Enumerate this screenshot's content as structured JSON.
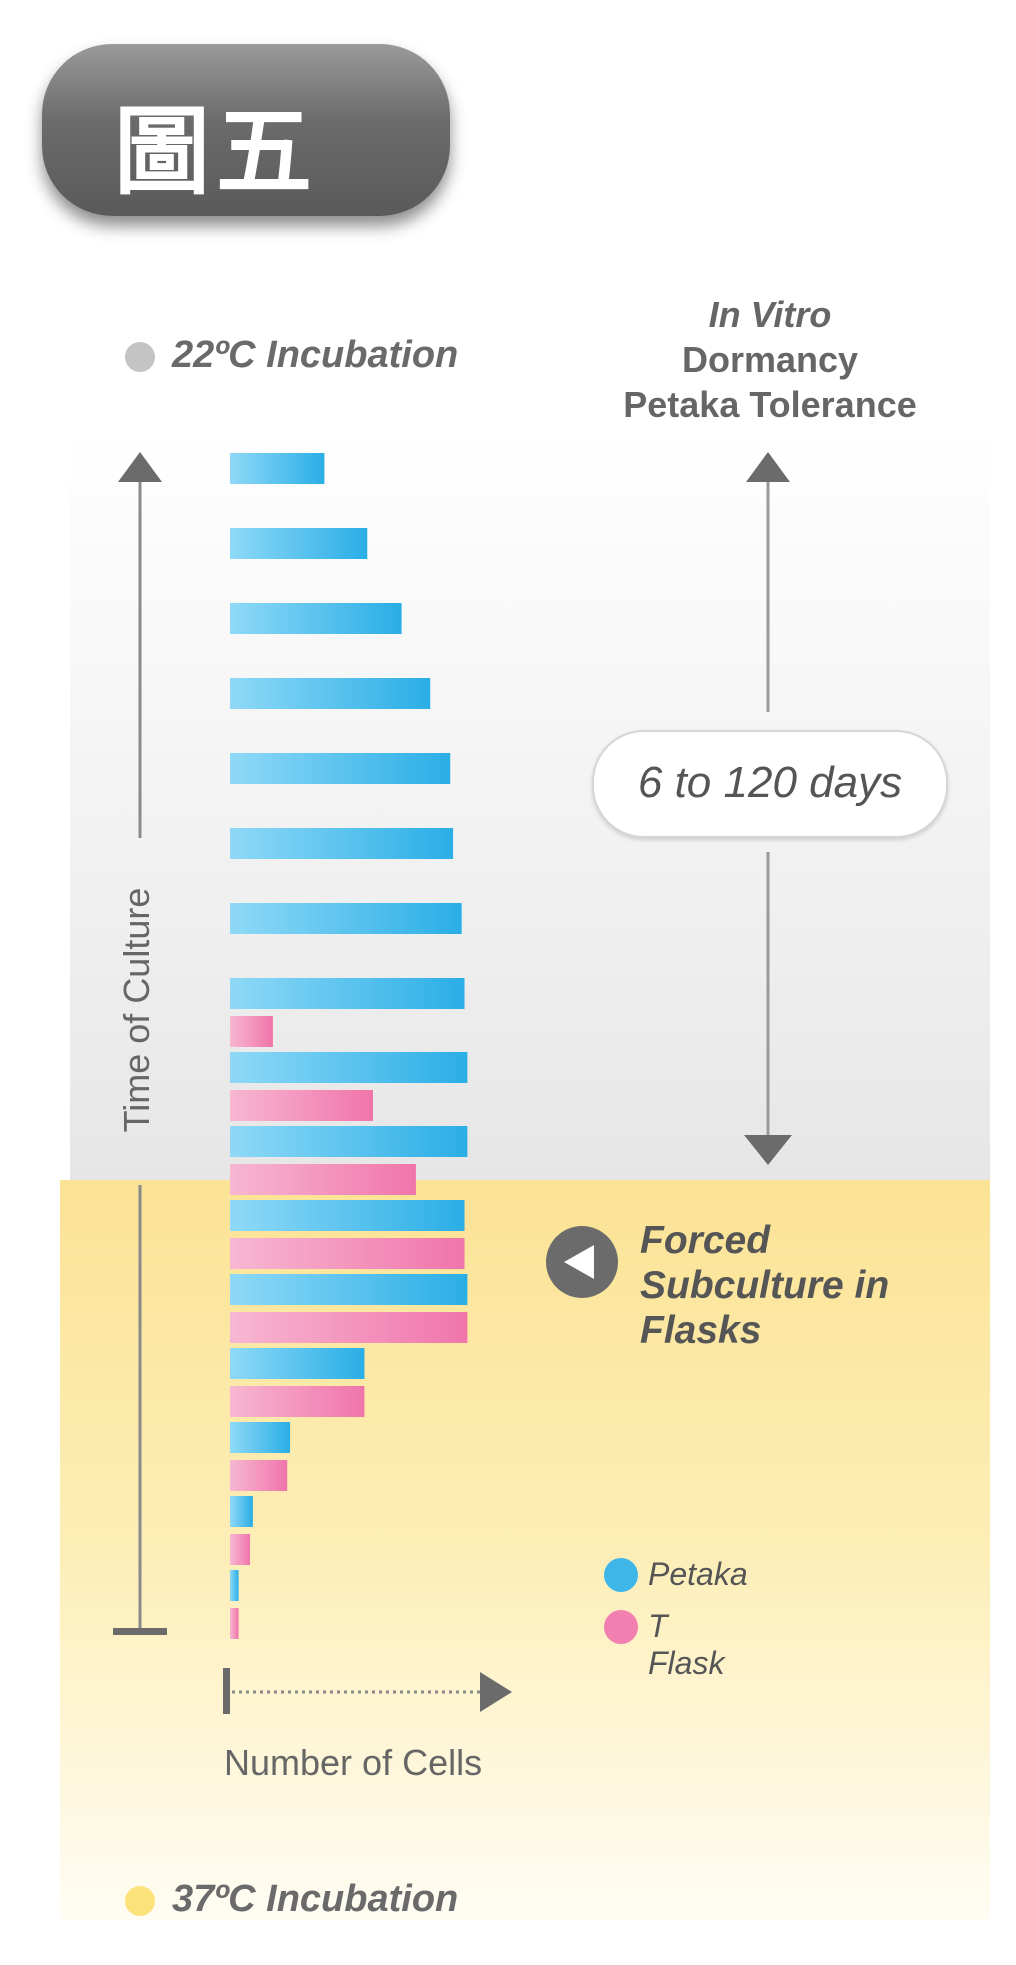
{
  "badge": {
    "label": "圖五"
  },
  "header": {
    "incubation_22": "22ºC Incubation",
    "incubation_37": "37ºC Incubation",
    "dormancy_line1": "In Vitro",
    "dormancy_line2": "Dormancy",
    "dormancy_line3": "Petaka Tolerance",
    "duration": "6 to 120 days",
    "forced_line1": "Forced",
    "forced_line2": "Subculture in",
    "forced_line3": "Flasks"
  },
  "colors": {
    "petaka": "#3eb6e8",
    "tflask": "#f17fb0",
    "incubation_22": "#c4c4c4",
    "incubation_37": "#fce27a",
    "arrow": "#6b6b6b"
  },
  "chart_data": {
    "type": "bar",
    "orientation": "horizontal",
    "xlabel": "Number of Cells",
    "ylabel": "Time of Culture",
    "series": [
      {
        "name": "Petaka",
        "values": [
          33,
          48,
          60,
          70,
          77,
          78,
          81,
          82,
          83,
          83,
          82,
          83,
          47,
          21,
          8,
          3
        ]
      },
      {
        "name": "T Flask",
        "values": [
          null,
          null,
          null,
          null,
          null,
          null,
          null,
          15,
          50,
          65,
          82,
          83,
          47,
          20,
          7,
          3
        ]
      }
    ],
    "legend": "bottom-right"
  }
}
